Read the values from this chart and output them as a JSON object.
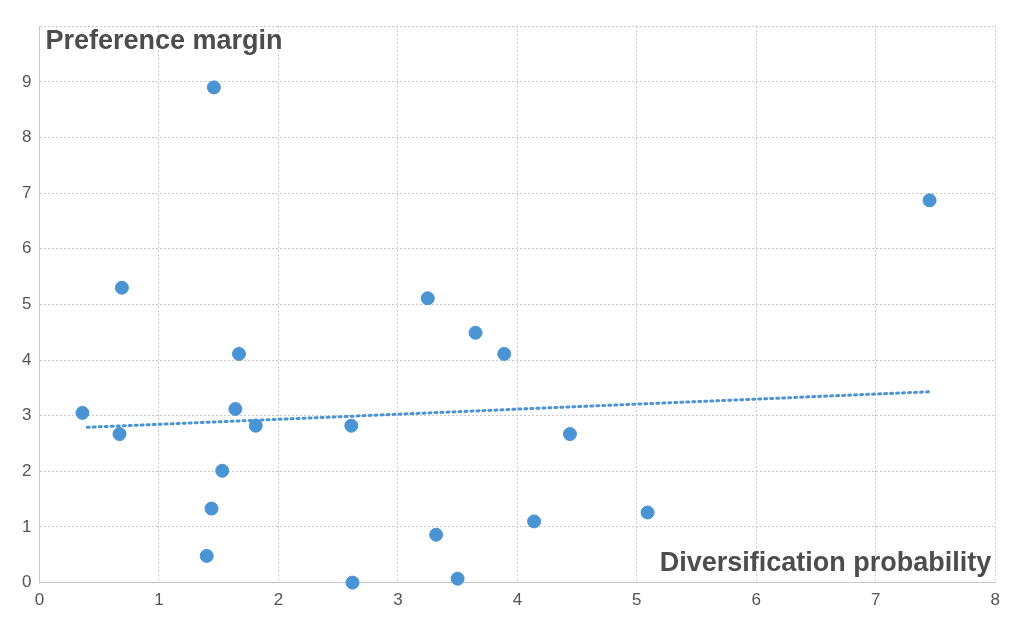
{
  "chart_data": {
    "type": "scatter",
    "xlabel": "Diversification probability",
    "ylabel": "Preference margin",
    "xlim": [
      0,
      8
    ],
    "xticks": [
      0,
      1,
      2,
      3,
      4,
      5,
      6,
      7,
      8
    ],
    "ylim": [
      0,
      10
    ],
    "yticks": [
      0,
      1,
      2,
      3,
      4,
      5,
      6,
      7,
      8,
      9,
      {
        "value": 10,
        "label": null
      }
    ],
    "grid": true,
    "legend": false,
    "marker": "circle",
    "series": [
      {
        "color": "#4a94d3",
        "x": [
          0.36,
          0.67,
          0.69,
          1.46,
          1.67,
          1.64,
          1.81,
          1.53,
          1.44,
          1.4,
          2.61,
          2.62,
          3.25,
          3.65,
          3.89,
          3.32,
          3.5,
          4.14,
          4.44,
          5.09,
          7.45
        ],
        "values": [
          3.05,
          2.67,
          5.3,
          8.9,
          4.11,
          3.12,
          2.82,
          2.01,
          1.33,
          0.48,
          2.82,
          0,
          5.11,
          4.49,
          4.11,
          0.86,
          0.07,
          1.1,
          2.67,
          1.26,
          6.87
        ]
      },
      {
        "type": "line",
        "color": "#4a94d3",
        "line_style": "dotted",
        "marker": "none",
        "x": [
          0.4,
          7.45
        ],
        "values": [
          2.79,
          3.43
        ]
      }
    ]
  }
}
